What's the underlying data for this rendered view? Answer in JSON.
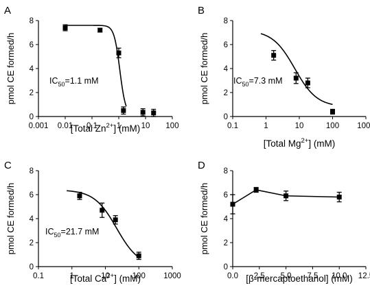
{
  "chart_data": [
    {
      "panel": "A",
      "type": "scatter",
      "xscale": "log",
      "xlim": [
        0.001,
        100
      ],
      "ylim": [
        0,
        8
      ],
      "xticks": [
        "0.001",
        "0.01",
        "0.1",
        "1",
        "10",
        "100"
      ],
      "yticks": [
        "0",
        "2",
        "4",
        "6",
        "8"
      ],
      "ylabel": "pmol CE formed/h",
      "xlabel": {
        "pre": "[Total Zn",
        "sup": "2+",
        "post": "] (mM)"
      },
      "annotation": {
        "pre": "IC",
        "sub": "50",
        "post": "=1.1 mM"
      },
      "points": [
        {
          "x": 0.01,
          "y": 7.4,
          "err": 0.25
        },
        {
          "x": 0.2,
          "y": 7.2,
          "err": 0.15
        },
        {
          "x": 1.0,
          "y": 5.3,
          "err": 0.4
        },
        {
          "x": 1.5,
          "y": 0.5,
          "err": 0.3
        },
        {
          "x": 8.0,
          "y": 0.35,
          "err": 0.3
        },
        {
          "x": 20.0,
          "y": 0.3,
          "err": 0.3
        }
      ],
      "fit": {
        "top": 7.6,
        "bottom": 0.1,
        "ic50": 1.1,
        "hill": 4.0,
        "xmin": 0.01,
        "xmax": 1.9
      }
    },
    {
      "panel": "B",
      "type": "scatter",
      "xscale": "log",
      "xlim": [
        0.1,
        1000
      ],
      "ylim": [
        0,
        8
      ],
      "xticks": [
        "0.1",
        "1",
        "10",
        "100",
        "1000"
      ],
      "yticks": [
        "0",
        "2",
        "4",
        "6",
        "8"
      ],
      "ylabel": "pmol CE formed/h",
      "xlabel": {
        "pre": "[Total Mg",
        "sup": "2+",
        "post": "] (mM)"
      },
      "annotation": {
        "pre": "IC",
        "sub": "50",
        "post": "=7.3 mM"
      },
      "points": [
        {
          "x": 1.7,
          "y": 5.1,
          "err": 0.4
        },
        {
          "x": 8.0,
          "y": 3.2,
          "err": 0.45
        },
        {
          "x": 18.0,
          "y": 2.8,
          "err": 0.4
        },
        {
          "x": 100.0,
          "y": 0.4,
          "err": 0.2
        }
      ],
      "fit": {
        "top": 7.2,
        "bottom": 0.8,
        "ic50": 7.3,
        "hill": 1.3,
        "xmin": 0.7,
        "xmax": 100
      }
    },
    {
      "panel": "C",
      "type": "scatter",
      "xscale": "log",
      "xlim": [
        0.1,
        1000
      ],
      "ylim": [
        0,
        8
      ],
      "xticks": [
        "0.1",
        "1",
        "10",
        "100",
        "1000"
      ],
      "yticks": [
        "0",
        "2",
        "4",
        "6",
        "8"
      ],
      "ylabel": "pmol CE formed/h",
      "xlabel": {
        "pre": "[Total Ca",
        "sup": "2+",
        "post": "] (mM)"
      },
      "annotation": {
        "pre": "IC",
        "sub": "50",
        "post": "=21.7 mM"
      },
      "points": [
        {
          "x": 1.7,
          "y": 5.9,
          "err": 0.3
        },
        {
          "x": 8.0,
          "y": 4.7,
          "err": 0.6
        },
        {
          "x": 20.0,
          "y": 3.9,
          "err": 0.35
        },
        {
          "x": 100.0,
          "y": 0.9,
          "err": 0.3
        }
      ],
      "fit": {
        "top": 6.4,
        "bottom": 0.0,
        "ic50": 21.7,
        "hill": 1.3,
        "xmin": 0.7,
        "xmax": 100
      }
    },
    {
      "panel": "D",
      "type": "line",
      "xscale": "linear",
      "xlim": [
        0,
        12.5
      ],
      "ylim": [
        0,
        8
      ],
      "xticks": [
        "0.0",
        "2.5",
        "5.0",
        "7.5",
        "10.0",
        "12.5"
      ],
      "yticks": [
        "0",
        "2",
        "4",
        "6",
        "8"
      ],
      "ylabel": "pmol CE formed/h",
      "xlabel": {
        "pre": "[β-mercaptoethanol]  (mM)",
        "sup": "",
        "post": ""
      },
      "annotation": null,
      "points": [
        {
          "x": 0.0,
          "y": 5.2,
          "err": 0.8
        },
        {
          "x": 2.2,
          "y": 6.4,
          "err": 0.2
        },
        {
          "x": 5.0,
          "y": 5.9,
          "err": 0.4
        },
        {
          "x": 10.0,
          "y": 5.8,
          "err": 0.4
        }
      ],
      "fit": null
    }
  ]
}
